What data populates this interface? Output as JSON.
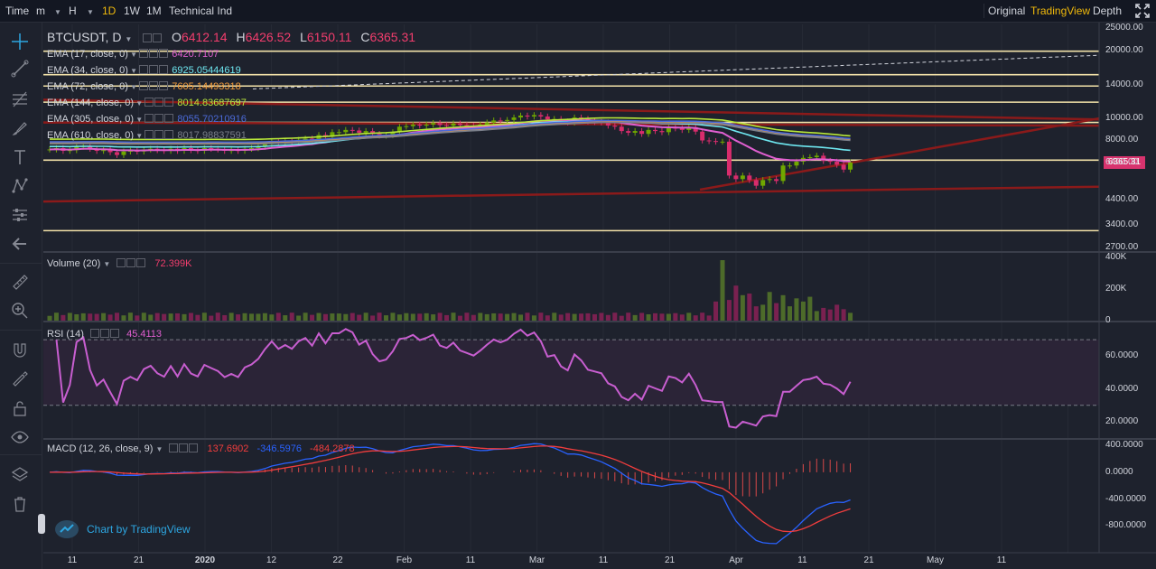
{
  "toolbar": {
    "time_label": "Time",
    "minute_label": "m",
    "hour_label": "H",
    "day_label": "1D",
    "week_label": "1W",
    "month_label": "1M",
    "indicator_label": "Technical Ind",
    "original_label": "Original",
    "tradingview_label": "TradingView",
    "depth_label": "Depth",
    "active_interval": "1D",
    "active_view": "TradingView"
  },
  "symbol": {
    "name": "BTCUSDT, D",
    "open_label": "O",
    "open": "6412.14",
    "high_label": "H",
    "high": "6426.52",
    "low_label": "L",
    "low": "6150.11",
    "close_label": "C",
    "close": "6365.31",
    "last_price_badge": "6365.31"
  },
  "ema_legend": [
    {
      "label": "EMA (17, close, 0)",
      "value": "6420.7107",
      "color": "#e05fd0"
    },
    {
      "label": "EMA (34, close, 0)",
      "value": "6925.05444619",
      "color": "#6ee7f0"
    },
    {
      "label": "EMA (72, close, 0)",
      "value": "7605.14493318",
      "color": "#f59d3a"
    },
    {
      "label": "EMA (144, close, 0)",
      "value": "8014.83687697",
      "color": "#b9e83a"
    },
    {
      "label": "EMA (305, close, 0)",
      "value": "8055.70210916",
      "color": "#4c6bd9"
    },
    {
      "label": "EMA (610, close, 0)",
      "value": "8017.98837591",
      "color": "#7a7f8a"
    }
  ],
  "panes": {
    "volume": {
      "label": "Volume (20)",
      "value": "72.399K",
      "value_color": "#f23d6d"
    },
    "rsi": {
      "label": "RSI (14)",
      "value": "45.4113",
      "value_color": "#e05fd0"
    },
    "macd": {
      "label": "MACD (12, 26, close, 9)",
      "hist": "137.6902",
      "hist_color": "#f23d3d",
      "macd": "-346.5976",
      "macd_color": "#2962ff",
      "signal": "-484.2878",
      "signal_color": "#f23d3d"
    }
  },
  "price_axis": [
    "25000.00",
    "20000.00",
    "14000.00",
    "10000.00",
    "8000.00",
    "6400.00",
    "4400.00",
    "3400.00",
    "2700.00"
  ],
  "volume_axis": [
    "400K",
    "200K",
    "0"
  ],
  "rsi_axis": [
    "60.0000",
    "40.0000",
    "20.0000"
  ],
  "macd_axis": [
    "400.0000",
    "0.0000",
    "-400.0000",
    "-800.0000"
  ],
  "time_axis": [
    "11",
    "21",
    "2020",
    "12",
    "22",
    "Feb",
    "11",
    "Mar",
    "11",
    "21",
    "Apr",
    "11",
    "21",
    "May",
    "11"
  ],
  "watermark": {
    "text": "Chart by TradingView"
  },
  "colors": {
    "up": "#70a800",
    "down": "#d82c6c",
    "hline": "#f3e2a9",
    "trendline": "#8b1a1a",
    "accent": "#f0b90b"
  },
  "chart_data": {
    "type": "candlestick",
    "title": "BTCUSDT, D",
    "price_scale": "log",
    "ylim": [
      2600,
      26000
    ],
    "horizontal_levels": [
      19800,
      15600,
      13900,
      11800,
      9600,
      6550,
      3200
    ],
    "close_series": {
      "name": "close",
      "x_start": "2019-12-02",
      "values_approx": [
        7300,
        7400,
        7200,
        7250,
        7500,
        7550,
        7350,
        7200,
        7250,
        7100,
        6900,
        7150,
        7200,
        7150,
        7300,
        7350,
        7250,
        7200,
        7350,
        7200,
        7400,
        7250,
        7200,
        7400,
        7350,
        7300,
        7200,
        7250,
        7200,
        7350,
        7400,
        7500,
        7700,
        7900,
        7800,
        7900,
        7850,
        8050,
        8150,
        8050,
        8450,
        8300,
        8700,
        8700,
        8900,
        8850,
        8650,
        8800,
        8550,
        8400,
        8450,
        8700,
        9200,
        9250,
        9400,
        9300,
        9400,
        9550,
        9350,
        9300,
        9500,
        9350,
        9300,
        9250,
        9400,
        9600,
        9800,
        9750,
        9850,
        10100,
        10300,
        10200,
        10350,
        10200,
        9900,
        9950,
        9700,
        9600,
        10100,
        9950,
        9700,
        9650,
        9600,
        9300,
        9200,
        8800,
        8650,
        8800,
        8550,
        8900,
        8800,
        8700,
        9100,
        9050,
        8900,
        9150,
        8750,
        8000,
        7950,
        7900,
        7900,
        5600,
        5400,
        5600,
        5350,
        5050,
        5350,
        5400,
        5300,
        6200,
        6200,
        6450,
        6700,
        6750,
        6850,
        6500,
        6450,
        6250,
        5950,
        6400
      ]
    },
    "emas": [
      {
        "name": "EMA (17, close, 0)",
        "last": 6420.7107
      },
      {
        "name": "EMA (34, close, 0)",
        "last": 6925.05444619
      },
      {
        "name": "EMA (72, close, 0)",
        "last": 7605.14493318
      },
      {
        "name": "EMA (144, close, 0)",
        "last": 8014.83687697
      },
      {
        "name": "EMA (305, close, 0)",
        "last": 8055.70210916
      },
      {
        "name": "EMA (610, close, 0)",
        "last": 8017.98837591
      }
    ],
    "volume_last": "72.399K",
    "rsi_last": 45.4113,
    "macd_last": {
      "hist": 137.6902,
      "macd": -346.5976,
      "signal": -484.2878
    }
  }
}
